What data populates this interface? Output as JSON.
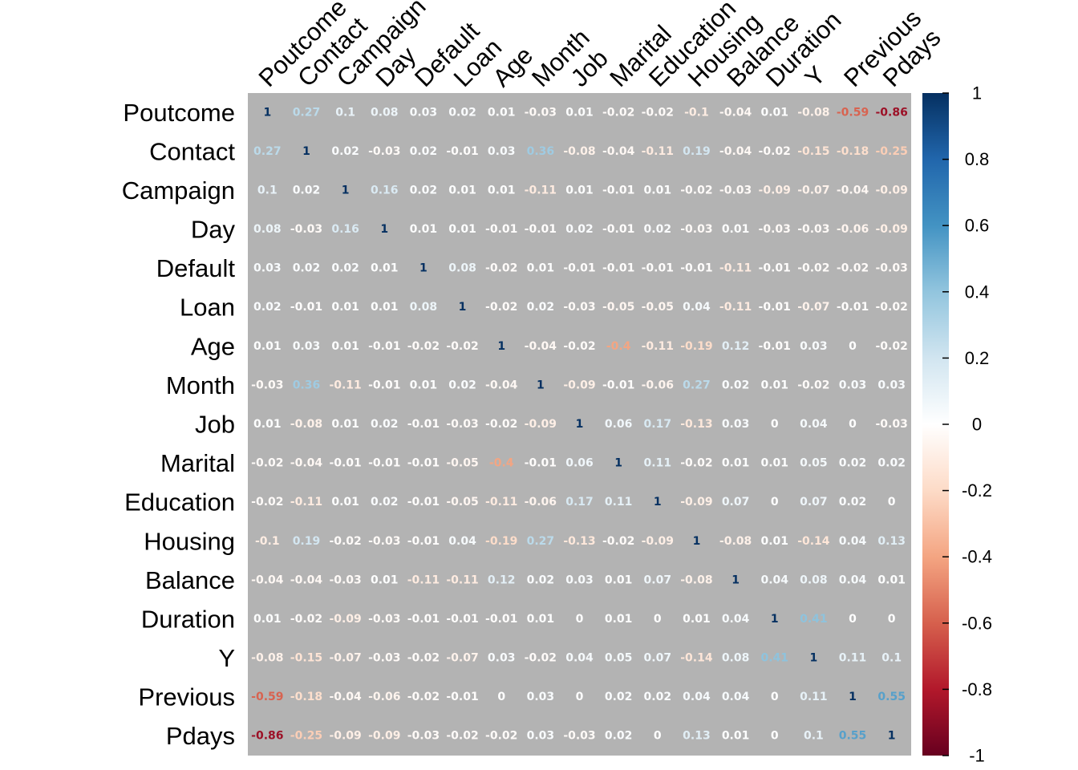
{
  "chart_data": {
    "type": "heatmap",
    "title": "",
    "variables": [
      "Poutcome",
      "Contact",
      "Campaign",
      "Day",
      "Default",
      "Loan",
      "Age",
      "Month",
      "Job",
      "Marital",
      "Education",
      "Housing",
      "Balance",
      "Duration",
      "Y",
      "Previous",
      "Pdays"
    ],
    "matrix": [
      [
        1,
        0.27,
        0.1,
        0.08,
        0.03,
        0.02,
        0.01,
        -0.03,
        0.01,
        -0.02,
        -0.02,
        -0.1,
        -0.04,
        0.01,
        -0.08,
        -0.59,
        -0.86
      ],
      [
        0.27,
        1,
        0.02,
        -0.03,
        0.02,
        -0.01,
        0.03,
        0.36,
        -0.08,
        -0.04,
        -0.11,
        0.19,
        -0.04,
        -0.02,
        -0.15,
        -0.18,
        -0.25
      ],
      [
        0.1,
        0.02,
        1,
        0.16,
        0.02,
        0.01,
        0.01,
        -0.11,
        0.01,
        -0.01,
        0.01,
        -0.02,
        -0.03,
        -0.09,
        -0.07,
        -0.04,
        -0.09
      ],
      [
        0.08,
        -0.03,
        0.16,
        1,
        0.01,
        0.01,
        -0.01,
        -0.01,
        0.02,
        -0.01,
        0.02,
        -0.03,
        0.01,
        -0.03,
        -0.03,
        -0.06,
        -0.09
      ],
      [
        0.03,
        0.02,
        0.02,
        0.01,
        1,
        0.08,
        -0.02,
        0.01,
        -0.01,
        -0.01,
        -0.01,
        -0.01,
        -0.11,
        -0.01,
        -0.02,
        -0.02,
        -0.03
      ],
      [
        0.02,
        -0.01,
        0.01,
        0.01,
        0.08,
        1,
        -0.02,
        0.02,
        -0.03,
        -0.05,
        -0.05,
        0.04,
        -0.11,
        -0.01,
        -0.07,
        -0.01,
        -0.02
      ],
      [
        0.01,
        0.03,
        0.01,
        -0.01,
        -0.02,
        -0.02,
        1,
        -0.04,
        -0.02,
        -0.4,
        -0.11,
        -0.19,
        0.12,
        -0.01,
        0.03,
        0,
        -0.02
      ],
      [
        -0.03,
        0.36,
        -0.11,
        -0.01,
        0.01,
        0.02,
        -0.04,
        1,
        -0.09,
        -0.01,
        -0.06,
        0.27,
        0.02,
        0.01,
        -0.02,
        0.03,
        0.03
      ],
      [
        0.01,
        -0.08,
        0.01,
        0.02,
        -0.01,
        -0.03,
        -0.02,
        -0.09,
        1,
        0.06,
        0.17,
        -0.13,
        0.03,
        0,
        0.04,
        0,
        -0.03
      ],
      [
        -0.02,
        -0.04,
        -0.01,
        -0.01,
        -0.01,
        -0.05,
        -0.4,
        -0.01,
        0.06,
        1,
        0.11,
        -0.02,
        0.01,
        0.01,
        0.05,
        0.02,
        0.02
      ],
      [
        -0.02,
        -0.11,
        0.01,
        0.02,
        -0.01,
        -0.05,
        -0.11,
        -0.06,
        0.17,
        0.11,
        1,
        -0.09,
        0.07,
        0,
        0.07,
        0.02,
        0
      ],
      [
        -0.1,
        0.19,
        -0.02,
        -0.03,
        -0.01,
        0.04,
        -0.19,
        0.27,
        -0.13,
        -0.02,
        -0.09,
        1,
        -0.08,
        0.01,
        -0.14,
        0.04,
        0.13
      ],
      [
        -0.04,
        -0.04,
        -0.03,
        0.01,
        -0.11,
        -0.11,
        0.12,
        0.02,
        0.03,
        0.01,
        0.07,
        -0.08,
        1,
        0.04,
        0.08,
        0.04,
        0.01
      ],
      [
        0.01,
        -0.02,
        -0.09,
        -0.03,
        -0.01,
        -0.01,
        -0.01,
        0.01,
        0,
        0.01,
        0,
        0.01,
        0.04,
        1,
        0.41,
        0,
        0
      ],
      [
        -0.08,
        -0.15,
        -0.07,
        -0.03,
        -0.02,
        -0.07,
        0.03,
        -0.02,
        0.04,
        0.05,
        0.07,
        -0.14,
        0.08,
        0.41,
        1,
        0.11,
        0.1
      ],
      [
        -0.59,
        -0.18,
        -0.04,
        -0.06,
        -0.02,
        -0.01,
        0,
        0.03,
        0,
        0.02,
        0.02,
        0.04,
        0.04,
        0,
        0.11,
        1,
        0.55
      ],
      [
        -0.86,
        -0.25,
        -0.09,
        -0.09,
        -0.03,
        -0.02,
        -0.02,
        0.03,
        -0.03,
        0.02,
        0,
        0.13,
        0.01,
        0,
        0.1,
        0.55,
        1
      ]
    ],
    "color_scale": {
      "range": [
        -1,
        1
      ],
      "ticks": [
        "1",
        "0.8",
        "0.6",
        "0.4",
        "0.2",
        "0",
        "-0.2",
        "-0.4",
        "-0.6",
        "-0.8",
        "-1"
      ],
      "colors": [
        "#67001F",
        "#B2182B",
        "#D6604D",
        "#F4A582",
        "#FDDBC7",
        "#FFFFFF",
        "#D1E5F0",
        "#92C5DE",
        "#4393C3",
        "#2166AC",
        "#053061"
      ]
    },
    "background_color": "#B3B3B3",
    "legend": "right"
  }
}
